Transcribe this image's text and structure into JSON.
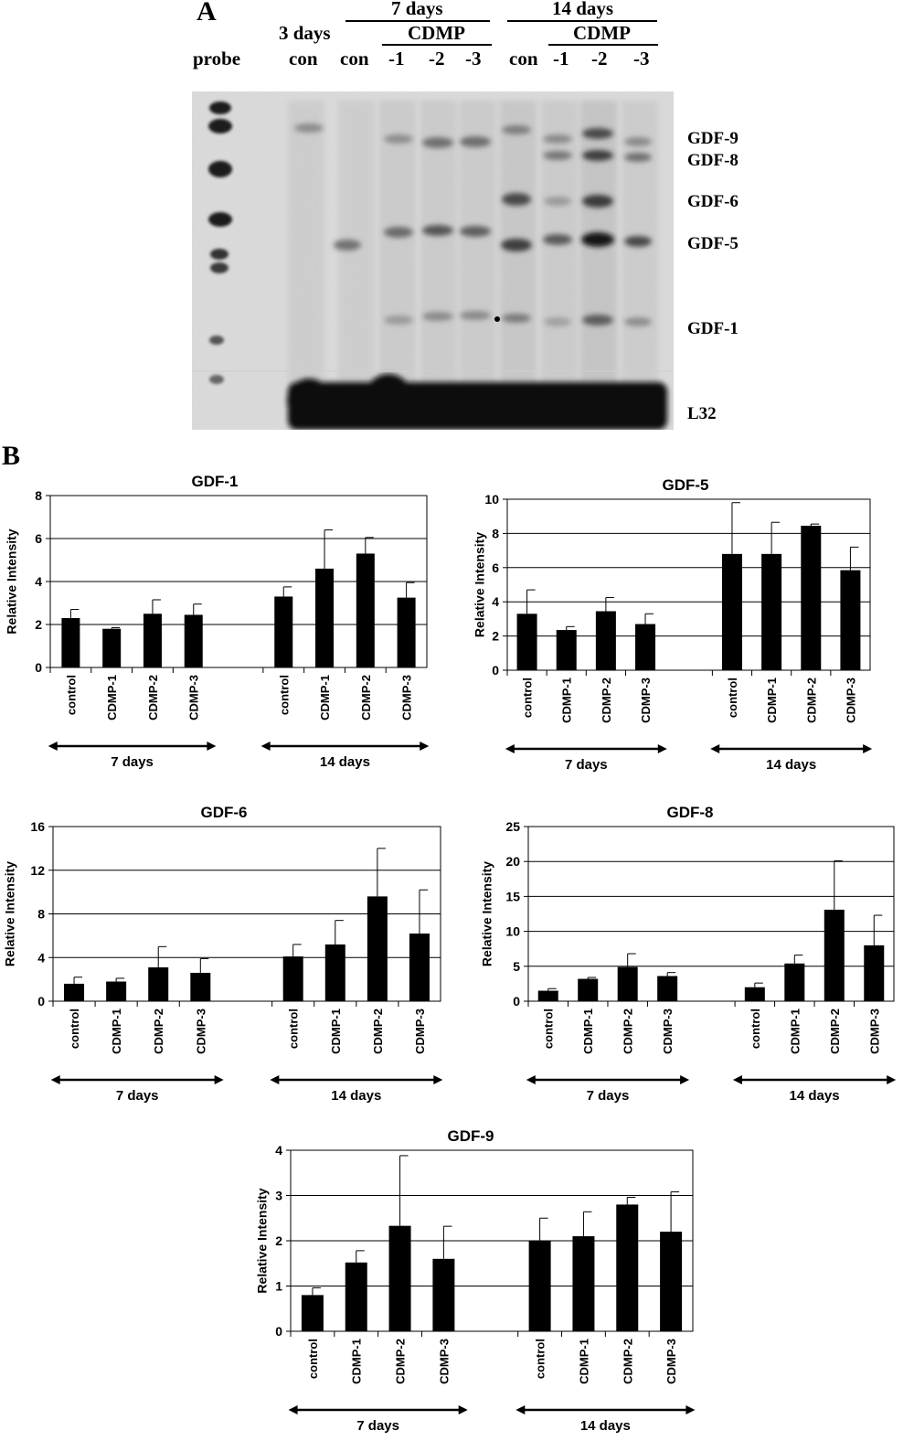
{
  "panel_a": {
    "letter": "A",
    "group_headers": {
      "seven_days": "7 days",
      "fourteen_days": "14 days",
      "cdmp_7": "CDMP",
      "cdmp_14": "CDMP",
      "three_days": "3 days"
    },
    "lane_labels": [
      "probe",
      "con",
      "con",
      "-1",
      "-2",
      "-3",
      "con",
      "-1",
      "-2",
      "-3"
    ],
    "gene_labels": [
      "GDF-9",
      "GDF-8",
      "GDF-6",
      "GDF-5",
      "GDF-1",
      "L32"
    ]
  },
  "panel_b": {
    "letter": "B"
  },
  "chart_data": [
    {
      "type": "bar",
      "title": "GDF-1",
      "ylabel": "Relative Intensity",
      "ylim": [
        0,
        8
      ],
      "yticks": [
        0,
        2,
        4,
        6,
        8
      ],
      "grid": true,
      "groups": [
        {
          "label": "7 days",
          "categories": [
            "control",
            "CDMP-1",
            "CDMP-2",
            "CDMP-3"
          ],
          "values": [
            2.3,
            1.8,
            2.5,
            2.45
          ],
          "errors": [
            0.4,
            0.05,
            0.65,
            0.5
          ]
        },
        {
          "label": "14 days",
          "categories": [
            "control",
            "CDMP-1",
            "CDMP-2",
            "CDMP-3"
          ],
          "values": [
            3.3,
            4.6,
            5.3,
            3.25
          ],
          "errors": [
            0.45,
            1.8,
            0.75,
            0.7
          ]
        }
      ]
    },
    {
      "type": "bar",
      "title": "GDF-5",
      "ylabel": "Relative Intensity",
      "ylim": [
        0,
        10
      ],
      "yticks": [
        0,
        2,
        4,
        6,
        8,
        10
      ],
      "grid": true,
      "groups": [
        {
          "label": "7 days",
          "categories": [
            "control",
            "CDMP-1",
            "CDMP-2",
            "CDMP-3"
          ],
          "values": [
            3.3,
            2.35,
            3.45,
            2.7
          ],
          "errors": [
            1.4,
            0.2,
            0.8,
            0.6
          ]
        },
        {
          "label": "14 days",
          "categories": [
            "control",
            "CDMP-1",
            "CDMP-2",
            "CDMP-3"
          ],
          "values": [
            6.8,
            6.8,
            8.45,
            5.85
          ],
          "errors": [
            3.0,
            1.85,
            0.1,
            1.35
          ]
        }
      ]
    },
    {
      "type": "bar",
      "title": "GDF-6",
      "ylabel": "Relative Intensity",
      "ylim": [
        0,
        16
      ],
      "yticks": [
        0,
        4,
        8,
        12,
        16
      ],
      "grid": true,
      "groups": [
        {
          "label": "7 days",
          "categories": [
            "control",
            "CDMP-1",
            "CDMP-2",
            "CDMP-3"
          ],
          "values": [
            1.6,
            1.8,
            3.1,
            2.6
          ],
          "errors": [
            0.6,
            0.3,
            1.9,
            1.3
          ]
        },
        {
          "label": "14 days",
          "categories": [
            "control",
            "CDMP-1",
            "CDMP-2",
            "CDMP-3"
          ],
          "values": [
            4.1,
            5.2,
            9.6,
            6.2
          ],
          "errors": [
            1.1,
            2.2,
            4.4,
            4.0
          ]
        }
      ]
    },
    {
      "type": "bar",
      "title": "GDF-8",
      "ylabel": "Relative Intensity",
      "ylim": [
        0,
        25
      ],
      "yticks": [
        0,
        5,
        10,
        15,
        20,
        25
      ],
      "grid": true,
      "groups": [
        {
          "label": "7 days",
          "categories": [
            "control",
            "CDMP-1",
            "CDMP-2",
            "CDMP-3"
          ],
          "values": [
            1.5,
            3.2,
            4.9,
            3.6
          ],
          "errors": [
            0.3,
            0.2,
            1.9,
            0.5
          ]
        },
        {
          "label": "14 days",
          "categories": [
            "control",
            "CDMP-1",
            "CDMP-2",
            "CDMP-3"
          ],
          "values": [
            2.0,
            5.4,
            13.1,
            8.0
          ],
          "errors": [
            0.6,
            1.2,
            7.0,
            4.3
          ]
        }
      ]
    },
    {
      "type": "bar",
      "title": "GDF-9",
      "ylabel": "Relative Intensity",
      "ylim": [
        0,
        4
      ],
      "yticks": [
        0,
        1,
        2,
        3,
        4
      ],
      "grid": true,
      "groups": [
        {
          "label": "7 days",
          "categories": [
            "control",
            "CDMP-1",
            "CDMP-2",
            "CDMP-3"
          ],
          "values": [
            0.8,
            1.52,
            2.33,
            1.6
          ],
          "errors": [
            0.16,
            0.26,
            1.55,
            0.72
          ]
        },
        {
          "label": "14 days",
          "categories": [
            "control",
            "CDMP-1",
            "CDMP-2",
            "CDMP-3"
          ],
          "values": [
            2.0,
            2.1,
            2.8,
            2.2
          ],
          "errors": [
            0.5,
            0.54,
            0.16,
            0.88
          ]
        }
      ]
    }
  ]
}
